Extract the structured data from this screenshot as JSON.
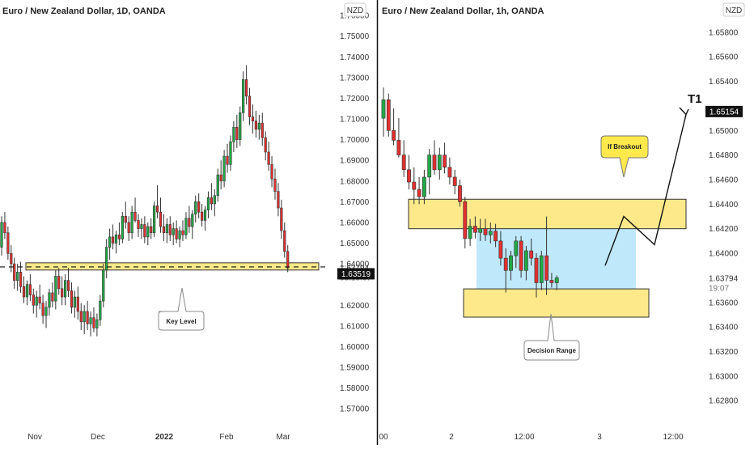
{
  "colors": {
    "up": "#22a846",
    "down": "#e03030",
    "zone_fill": "#fde98a",
    "zone_stroke": "#333333",
    "range_fill": "#bfe8fb",
    "callout_yellow": "#ffe94d",
    "axis_text": "#333333"
  },
  "chart_data": [
    {
      "type": "candlestick",
      "title": "Euro / New Zealand Dollar, 1D, OANDA",
      "currency_badge": "NZD",
      "x_ticks": [
        "Nov",
        "Dec",
        "2022",
        "Feb",
        "Mar"
      ],
      "y_ticks": [
        "1.76000",
        "1.75000",
        "1.74000",
        "1.73000",
        "1.72000",
        "1.71000",
        "1.70000",
        "1.69000",
        "1.68000",
        "1.67000",
        "1.66000",
        "1.65000",
        "1.64000",
        "1.62000",
        "1.61000",
        "1.60000",
        "1.59000",
        "1.58000",
        "1.57000"
      ],
      "ylim": [
        1.565,
        1.762
      ],
      "last_price": "1.63794",
      "countdown": "03:19:07",
      "bid_price": "1.63519",
      "key_zone": [
        1.637,
        1.6405
      ],
      "dashed_level": 1.6385,
      "callout": "Key Level",
      "candles": [
        {
          "o": 1.648,
          "h": 1.663,
          "l": 1.644,
          "c": 1.66
        },
        {
          "o": 1.66,
          "h": 1.665,
          "l": 1.652,
          "c": 1.655
        },
        {
          "o": 1.655,
          "h": 1.658,
          "l": 1.642,
          "c": 1.645
        },
        {
          "o": 1.645,
          "h": 1.649,
          "l": 1.636,
          "c": 1.64
        },
        {
          "o": 1.64,
          "h": 1.643,
          "l": 1.628,
          "c": 1.632
        },
        {
          "o": 1.632,
          "h": 1.64,
          "l": 1.627,
          "c": 1.636
        },
        {
          "o": 1.636,
          "h": 1.641,
          "l": 1.626,
          "c": 1.629
        },
        {
          "o": 1.629,
          "h": 1.634,
          "l": 1.621,
          "c": 1.624
        },
        {
          "o": 1.624,
          "h": 1.632,
          "l": 1.62,
          "c": 1.63
        },
        {
          "o": 1.63,
          "h": 1.635,
          "l": 1.622,
          "c": 1.625
        },
        {
          "o": 1.625,
          "h": 1.628,
          "l": 1.616,
          "c": 1.62
        },
        {
          "o": 1.62,
          "h": 1.627,
          "l": 1.614,
          "c": 1.624
        },
        {
          "o": 1.624,
          "h": 1.63,
          "l": 1.618,
          "c": 1.621
        },
        {
          "o": 1.621,
          "h": 1.625,
          "l": 1.611,
          "c": 1.615
        },
        {
          "o": 1.615,
          "h": 1.622,
          "l": 1.609,
          "c": 1.619
        },
        {
          "o": 1.619,
          "h": 1.628,
          "l": 1.615,
          "c": 1.626
        },
        {
          "o": 1.626,
          "h": 1.631,
          "l": 1.619,
          "c": 1.622
        },
        {
          "o": 1.622,
          "h": 1.637,
          "l": 1.618,
          "c": 1.634
        },
        {
          "o": 1.634,
          "h": 1.638,
          "l": 1.625,
          "c": 1.628
        },
        {
          "o": 1.628,
          "h": 1.634,
          "l": 1.62,
          "c": 1.624
        },
        {
          "o": 1.624,
          "h": 1.635,
          "l": 1.62,
          "c": 1.632
        },
        {
          "o": 1.632,
          "h": 1.638,
          "l": 1.624,
          "c": 1.627
        },
        {
          "o": 1.627,
          "h": 1.631,
          "l": 1.616,
          "c": 1.619
        },
        {
          "o": 1.619,
          "h": 1.627,
          "l": 1.614,
          "c": 1.624
        },
        {
          "o": 1.624,
          "h": 1.629,
          "l": 1.613,
          "c": 1.617
        },
        {
          "o": 1.617,
          "h": 1.621,
          "l": 1.608,
          "c": 1.612
        },
        {
          "o": 1.612,
          "h": 1.62,
          "l": 1.606,
          "c": 1.617
        },
        {
          "o": 1.617,
          "h": 1.622,
          "l": 1.608,
          "c": 1.611
        },
        {
          "o": 1.611,
          "h": 1.617,
          "l": 1.605,
          "c": 1.614
        },
        {
          "o": 1.614,
          "h": 1.619,
          "l": 1.607,
          "c": 1.609
        },
        {
          "o": 1.609,
          "h": 1.616,
          "l": 1.605,
          "c": 1.613
        },
        {
          "o": 1.613,
          "h": 1.625,
          "l": 1.61,
          "c": 1.622
        },
        {
          "o": 1.622,
          "h": 1.64,
          "l": 1.619,
          "c": 1.637
        },
        {
          "o": 1.637,
          "h": 1.652,
          "l": 1.633,
          "c": 1.648
        },
        {
          "o": 1.648,
          "h": 1.657,
          "l": 1.642,
          "c": 1.653
        },
        {
          "o": 1.653,
          "h": 1.659,
          "l": 1.647,
          "c": 1.65
        },
        {
          "o": 1.65,
          "h": 1.656,
          "l": 1.645,
          "c": 1.654
        },
        {
          "o": 1.654,
          "h": 1.66,
          "l": 1.649,
          "c": 1.652
        },
        {
          "o": 1.652,
          "h": 1.665,
          "l": 1.65,
          "c": 1.663
        },
        {
          "o": 1.663,
          "h": 1.67,
          "l": 1.657,
          "c": 1.66
        },
        {
          "o": 1.66,
          "h": 1.663,
          "l": 1.651,
          "c": 1.655
        },
        {
          "o": 1.655,
          "h": 1.668,
          "l": 1.652,
          "c": 1.665
        },
        {
          "o": 1.665,
          "h": 1.672,
          "l": 1.66,
          "c": 1.661
        },
        {
          "o": 1.661,
          "h": 1.664,
          "l": 1.653,
          "c": 1.657
        },
        {
          "o": 1.657,
          "h": 1.662,
          "l": 1.652,
          "c": 1.659
        },
        {
          "o": 1.659,
          "h": 1.663,
          "l": 1.65,
          "c": 1.653
        },
        {
          "o": 1.653,
          "h": 1.66,
          "l": 1.649,
          "c": 1.658
        },
        {
          "o": 1.658,
          "h": 1.662,
          "l": 1.652,
          "c": 1.655
        },
        {
          "o": 1.655,
          "h": 1.67,
          "l": 1.653,
          "c": 1.668
        },
        {
          "o": 1.668,
          "h": 1.678,
          "l": 1.662,
          "c": 1.665
        },
        {
          "o": 1.665,
          "h": 1.672,
          "l": 1.655,
          "c": 1.658
        },
        {
          "o": 1.658,
          "h": 1.664,
          "l": 1.651,
          "c": 1.655
        },
        {
          "o": 1.655,
          "h": 1.662,
          "l": 1.65,
          "c": 1.659
        },
        {
          "o": 1.659,
          "h": 1.663,
          "l": 1.651,
          "c": 1.654
        },
        {
          "o": 1.654,
          "h": 1.66,
          "l": 1.649,
          "c": 1.657
        },
        {
          "o": 1.657,
          "h": 1.661,
          "l": 1.65,
          "c": 1.652
        },
        {
          "o": 1.652,
          "h": 1.658,
          "l": 1.648,
          "c": 1.656
        },
        {
          "o": 1.656,
          "h": 1.661,
          "l": 1.651,
          "c": 1.654
        },
        {
          "o": 1.654,
          "h": 1.665,
          "l": 1.652,
          "c": 1.662
        },
        {
          "o": 1.662,
          "h": 1.668,
          "l": 1.655,
          "c": 1.658
        },
        {
          "o": 1.658,
          "h": 1.666,
          "l": 1.652,
          "c": 1.664
        },
        {
          "o": 1.664,
          "h": 1.673,
          "l": 1.66,
          "c": 1.67
        },
        {
          "o": 1.67,
          "h": 1.674,
          "l": 1.662,
          "c": 1.665
        },
        {
          "o": 1.665,
          "h": 1.669,
          "l": 1.658,
          "c": 1.661
        },
        {
          "o": 1.661,
          "h": 1.668,
          "l": 1.656,
          "c": 1.666
        },
        {
          "o": 1.666,
          "h": 1.675,
          "l": 1.662,
          "c": 1.672
        },
        {
          "o": 1.672,
          "h": 1.679,
          "l": 1.666,
          "c": 1.669
        },
        {
          "o": 1.669,
          "h": 1.676,
          "l": 1.663,
          "c": 1.673
        },
        {
          "o": 1.673,
          "h": 1.686,
          "l": 1.67,
          "c": 1.683
        },
        {
          "o": 1.683,
          "h": 1.69,
          "l": 1.676,
          "c": 1.68
        },
        {
          "o": 1.68,
          "h": 1.695,
          "l": 1.677,
          "c": 1.692
        },
        {
          "o": 1.692,
          "h": 1.698,
          "l": 1.684,
          "c": 1.688
        },
        {
          "o": 1.688,
          "h": 1.702,
          "l": 1.685,
          "c": 1.699
        },
        {
          "o": 1.699,
          "h": 1.709,
          "l": 1.694,
          "c": 1.706
        },
        {
          "o": 1.706,
          "h": 1.712,
          "l": 1.696,
          "c": 1.7
        },
        {
          "o": 1.7,
          "h": 1.716,
          "l": 1.697,
          "c": 1.713
        },
        {
          "o": 1.713,
          "h": 1.733,
          "l": 1.709,
          "c": 1.729
        },
        {
          "o": 1.729,
          "h": 1.736,
          "l": 1.717,
          "c": 1.721
        },
        {
          "o": 1.721,
          "h": 1.725,
          "l": 1.707,
          "c": 1.711
        },
        {
          "o": 1.711,
          "h": 1.717,
          "l": 1.703,
          "c": 1.709
        },
        {
          "o": 1.709,
          "h": 1.714,
          "l": 1.701,
          "c": 1.705
        },
        {
          "o": 1.705,
          "h": 1.712,
          "l": 1.7,
          "c": 1.708
        },
        {
          "o": 1.708,
          "h": 1.713,
          "l": 1.697,
          "c": 1.701
        },
        {
          "o": 1.701,
          "h": 1.704,
          "l": 1.69,
          "c": 1.694
        },
        {
          "o": 1.694,
          "h": 1.699,
          "l": 1.685,
          "c": 1.688
        },
        {
          "o": 1.688,
          "h": 1.692,
          "l": 1.677,
          "c": 1.681
        },
        {
          "o": 1.681,
          "h": 1.686,
          "l": 1.671,
          "c": 1.675
        },
        {
          "o": 1.675,
          "h": 1.679,
          "l": 1.663,
          "c": 1.667
        },
        {
          "o": 1.667,
          "h": 1.671,
          "l": 1.652,
          "c": 1.656
        },
        {
          "o": 1.656,
          "h": 1.66,
          "l": 1.643,
          "c": 1.646
        },
        {
          "o": 1.646,
          "h": 1.649,
          "l": 1.636,
          "c": 1.638
        }
      ]
    },
    {
      "type": "candlestick",
      "title": "Euro / New Zealand Dollar, 1h, OANDA",
      "currency_badge": "NZD",
      "x_ticks": [
        "00",
        "2",
        "12:00",
        "3",
        "12:00"
      ],
      "y_ticks": [
        "1.65800",
        "1.65600",
        "1.65400",
        "1.65000",
        "1.64800",
        "1.64600",
        "1.64400",
        "1.64200",
        "1.64000",
        "1.63600",
        "1.63400",
        "1.63200",
        "1.63000",
        "1.62800"
      ],
      "ylim": [
        1.6265,
        1.6597
      ],
      "last_price": "1.63794",
      "countdown": "19:07",
      "target_price": "1.65154",
      "target_label": "T1",
      "resistance_zone": [
        1.642,
        1.6444
      ],
      "support_zone": [
        1.6348,
        1.6371
      ],
      "decision_range": [
        1.6371,
        1.642
      ],
      "callout_breakout": "If Breakout",
      "callout_range": "Decision Range",
      "projection": [
        [
          1.639,
          1.643,
          1.6407,
          1.6513
        ]
      ],
      "candles": [
        {
          "o": 1.651,
          "h": 1.6535,
          "l": 1.6495,
          "c": 1.6525
        },
        {
          "o": 1.6525,
          "h": 1.653,
          "l": 1.6495,
          "c": 1.65
        },
        {
          "o": 1.65,
          "h": 1.6518,
          "l": 1.6488,
          "c": 1.6492
        },
        {
          "o": 1.6492,
          "h": 1.651,
          "l": 1.6478,
          "c": 1.648
        },
        {
          "o": 1.648,
          "h": 1.6492,
          "l": 1.6462,
          "c": 1.6468
        },
        {
          "o": 1.6468,
          "h": 1.648,
          "l": 1.6452,
          "c": 1.6458
        },
        {
          "o": 1.6458,
          "h": 1.647,
          "l": 1.644,
          "c": 1.6452
        },
        {
          "o": 1.6452,
          "h": 1.6462,
          "l": 1.644,
          "c": 1.6446
        },
        {
          "o": 1.6446,
          "h": 1.6468,
          "l": 1.644,
          "c": 1.6462
        },
        {
          "o": 1.6462,
          "h": 1.6485,
          "l": 1.6448,
          "c": 1.648
        },
        {
          "o": 1.648,
          "h": 1.6492,
          "l": 1.6464,
          "c": 1.6468
        },
        {
          "o": 1.6468,
          "h": 1.6486,
          "l": 1.646,
          "c": 1.648
        },
        {
          "o": 1.648,
          "h": 1.649,
          "l": 1.6465,
          "c": 1.647
        },
        {
          "o": 1.647,
          "h": 1.6478,
          "l": 1.6456,
          "c": 1.6462
        },
        {
          "o": 1.6462,
          "h": 1.6468,
          "l": 1.6448,
          "c": 1.6455
        },
        {
          "o": 1.6455,
          "h": 1.646,
          "l": 1.6438,
          "c": 1.6442
        },
        {
          "o": 1.6442,
          "h": 1.6446,
          "l": 1.6404,
          "c": 1.6412
        },
        {
          "o": 1.6412,
          "h": 1.6428,
          "l": 1.6406,
          "c": 1.6422
        },
        {
          "o": 1.6422,
          "h": 1.643,
          "l": 1.6412,
          "c": 1.6417
        },
        {
          "o": 1.6417,
          "h": 1.6428,
          "l": 1.641,
          "c": 1.642
        },
        {
          "o": 1.642,
          "h": 1.6428,
          "l": 1.641,
          "c": 1.6415
        },
        {
          "o": 1.6415,
          "h": 1.6425,
          "l": 1.6408,
          "c": 1.6418
        },
        {
          "o": 1.6418,
          "h": 1.6424,
          "l": 1.6405,
          "c": 1.641
        },
        {
          "o": 1.641,
          "h": 1.6418,
          "l": 1.639,
          "c": 1.6396
        },
        {
          "o": 1.6396,
          "h": 1.6404,
          "l": 1.6368,
          "c": 1.6386
        },
        {
          "o": 1.6386,
          "h": 1.6402,
          "l": 1.6378,
          "c": 1.6398
        },
        {
          "o": 1.6398,
          "h": 1.6414,
          "l": 1.6388,
          "c": 1.641
        },
        {
          "o": 1.641,
          "h": 1.6414,
          "l": 1.638,
          "c": 1.6386
        },
        {
          "o": 1.6386,
          "h": 1.6406,
          "l": 1.6378,
          "c": 1.6402
        },
        {
          "o": 1.6402,
          "h": 1.6412,
          "l": 1.639,
          "c": 1.6396
        },
        {
          "o": 1.6396,
          "h": 1.64,
          "l": 1.6364,
          "c": 1.6376
        },
        {
          "o": 1.6376,
          "h": 1.6402,
          "l": 1.637,
          "c": 1.6398
        },
        {
          "o": 1.6398,
          "h": 1.643,
          "l": 1.6366,
          "c": 1.6378
        },
        {
          "o": 1.6378,
          "h": 1.6384,
          "l": 1.6372,
          "c": 1.6376
        },
        {
          "o": 1.6376,
          "h": 1.6382,
          "l": 1.637,
          "c": 1.638
        }
      ]
    }
  ]
}
